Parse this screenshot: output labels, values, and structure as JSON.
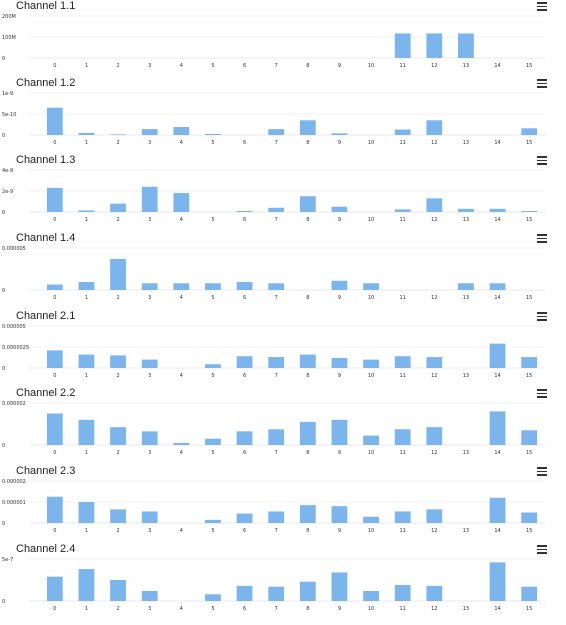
{
  "colors": {
    "bar": "#7cb5ec",
    "grid": "#e6e6e6",
    "axis": "#ccd6eb",
    "menu": "#333333"
  },
  "chart_data": [
    {
      "type": "bar",
      "title": "Channel 1.1",
      "categories": [
        "0",
        "1",
        "2",
        "3",
        "4",
        "5",
        "6",
        "7",
        "8",
        "9",
        "10",
        "11",
        "12",
        "13",
        "14",
        "15"
      ],
      "values": [
        0,
        0,
        0,
        0,
        0,
        0,
        0,
        0,
        0,
        0,
        0,
        117000000,
        117000000,
        117000000,
        0,
        0
      ],
      "ylim": [
        0,
        200000000
      ],
      "yticks": [
        0,
        100000000,
        200000000
      ],
      "ytick_labels": [
        "0",
        "100M",
        "200M"
      ]
    },
    {
      "type": "bar",
      "title": "Channel 1.2",
      "categories": [
        "0",
        "1",
        "2",
        "3",
        "4",
        "5",
        "6",
        "7",
        "8",
        "9",
        "10",
        "11",
        "12",
        "13",
        "14",
        "15"
      ],
      "values": [
        6.5e-10,
        5e-11,
        1.5e-11,
        1.4e-10,
        1.9e-10,
        2.5e-11,
        0,
        1.4e-10,
        3.5e-10,
        4e-11,
        0,
        1.3e-10,
        3.5e-10,
        0,
        0,
        1.6e-10
      ],
      "ylim": [
        0,
        1e-09
      ],
      "yticks": [
        0,
        5e-10,
        1e-09
      ],
      "ytick_labels": [
        "0",
        "5e-10",
        "1e-9"
      ]
    },
    {
      "type": "bar",
      "title": "Channel 1.3",
      "categories": [
        "0",
        "1",
        "2",
        "3",
        "4",
        "5",
        "6",
        "7",
        "8",
        "9",
        "10",
        "11",
        "12",
        "13",
        "14",
        "15"
      ],
      "values": [
        2.3e-09,
        1.5e-10,
        8e-10,
        2.4e-09,
        1.8e-09,
        0,
        1e-10,
        4e-10,
        1.5e-09,
        5e-10,
        0,
        2.5e-10,
        1.3e-09,
        3e-10,
        3e-10,
        1e-10
      ],
      "ylim": [
        0,
        4e-09
      ],
      "yticks": [
        0,
        2e-09,
        4e-09
      ],
      "ytick_labels": [
        "0",
        "2e-9",
        "4e-9"
      ]
    },
    {
      "type": "bar",
      "title": "Channel 1.4",
      "categories": [
        "0",
        "1",
        "2",
        "3",
        "4",
        "5",
        "6",
        "7",
        "8",
        "9",
        "10",
        "11",
        "12",
        "13",
        "14",
        "15"
      ],
      "values": [
        6.5e-07,
        9.5e-07,
        3.7e-06,
        8e-07,
        8e-07,
        8e-07,
        9.5e-07,
        8e-07,
        0,
        1.1e-06,
        8e-07,
        0,
        0,
        8e-07,
        8e-07,
        0
      ],
      "ylim": [
        0,
        5e-06
      ],
      "yticks": [
        0,
        5e-06
      ],
      "ytick_labels": [
        "0",
        "0.000005"
      ]
    },
    {
      "type": "bar",
      "title": "Channel 2.1",
      "categories": [
        "0",
        "1",
        "2",
        "3",
        "4",
        "5",
        "6",
        "7",
        "8",
        "9",
        "10",
        "11",
        "12",
        "13",
        "14",
        "15"
      ],
      "values": [
        2.1e-06,
        1.6e-06,
        1.5e-06,
        1e-06,
        0,
        4.5e-07,
        1.4e-06,
        1.3e-06,
        1.6e-06,
        1.2e-06,
        1e-06,
        1.4e-06,
        1.3e-06,
        0,
        2.9e-06,
        1.3e-06
      ],
      "ylim": [
        0,
        5e-06
      ],
      "yticks": [
        0,
        2.5e-06,
        5e-06
      ],
      "ytick_labels": [
        "0",
        "0.0000025",
        "0.000005"
      ]
    },
    {
      "type": "bar",
      "title": "Channel 2.2",
      "categories": [
        "0",
        "1",
        "2",
        "3",
        "4",
        "5",
        "6",
        "7",
        "8",
        "9",
        "10",
        "11",
        "12",
        "13",
        "14",
        "15"
      ],
      "values": [
        1.5e-06,
        1.2e-06,
        8.5e-07,
        6.5e-07,
        1e-07,
        3e-07,
        6.5e-07,
        7.5e-07,
        1.1e-06,
        1.2e-06,
        4.5e-07,
        7.5e-07,
        8.5e-07,
        0,
        1.6e-06,
        7e-07
      ],
      "ylim": [
        0,
        2e-06
      ],
      "yticks": [
        0,
        2e-06
      ],
      "ytick_labels": [
        "0",
        "0.000002"
      ]
    },
    {
      "type": "bar",
      "title": "Channel 2.3",
      "categories": [
        "0",
        "1",
        "2",
        "3",
        "4",
        "5",
        "6",
        "7",
        "8",
        "9",
        "10",
        "11",
        "12",
        "13",
        "14",
        "15"
      ],
      "values": [
        1.25e-06,
        1e-06,
        6.5e-07,
        5.5e-07,
        0,
        1.5e-07,
        4.5e-07,
        5.5e-07,
        8.5e-07,
        8e-07,
        3e-07,
        5.5e-07,
        6.5e-07,
        0,
        1.2e-06,
        5e-07
      ],
      "ylim": [
        0,
        2e-06
      ],
      "yticks": [
        0,
        1e-06,
        2e-06
      ],
      "ytick_labels": [
        "0",
        "0.000001",
        "0.000002"
      ]
    },
    {
      "type": "bar",
      "title": "Channel 2.4",
      "categories": [
        "0",
        "1",
        "2",
        "3",
        "4",
        "5",
        "6",
        "7",
        "8",
        "9",
        "10",
        "11",
        "12",
        "13",
        "14",
        "15"
      ],
      "values": [
        2.9e-07,
        3.8e-07,
        2.5e-07,
        1.2e-07,
        0,
        8e-08,
        1.8e-07,
        1.7e-07,
        2.3e-07,
        3.4e-07,
        1.2e-07,
        1.9e-07,
        1.8e-07,
        0,
        4.6e-07,
        1.7e-07
      ],
      "ylim": [
        0,
        5e-07
      ],
      "yticks": [
        0,
        5e-07
      ],
      "ytick_labels": [
        "0",
        "5e-7"
      ]
    }
  ]
}
